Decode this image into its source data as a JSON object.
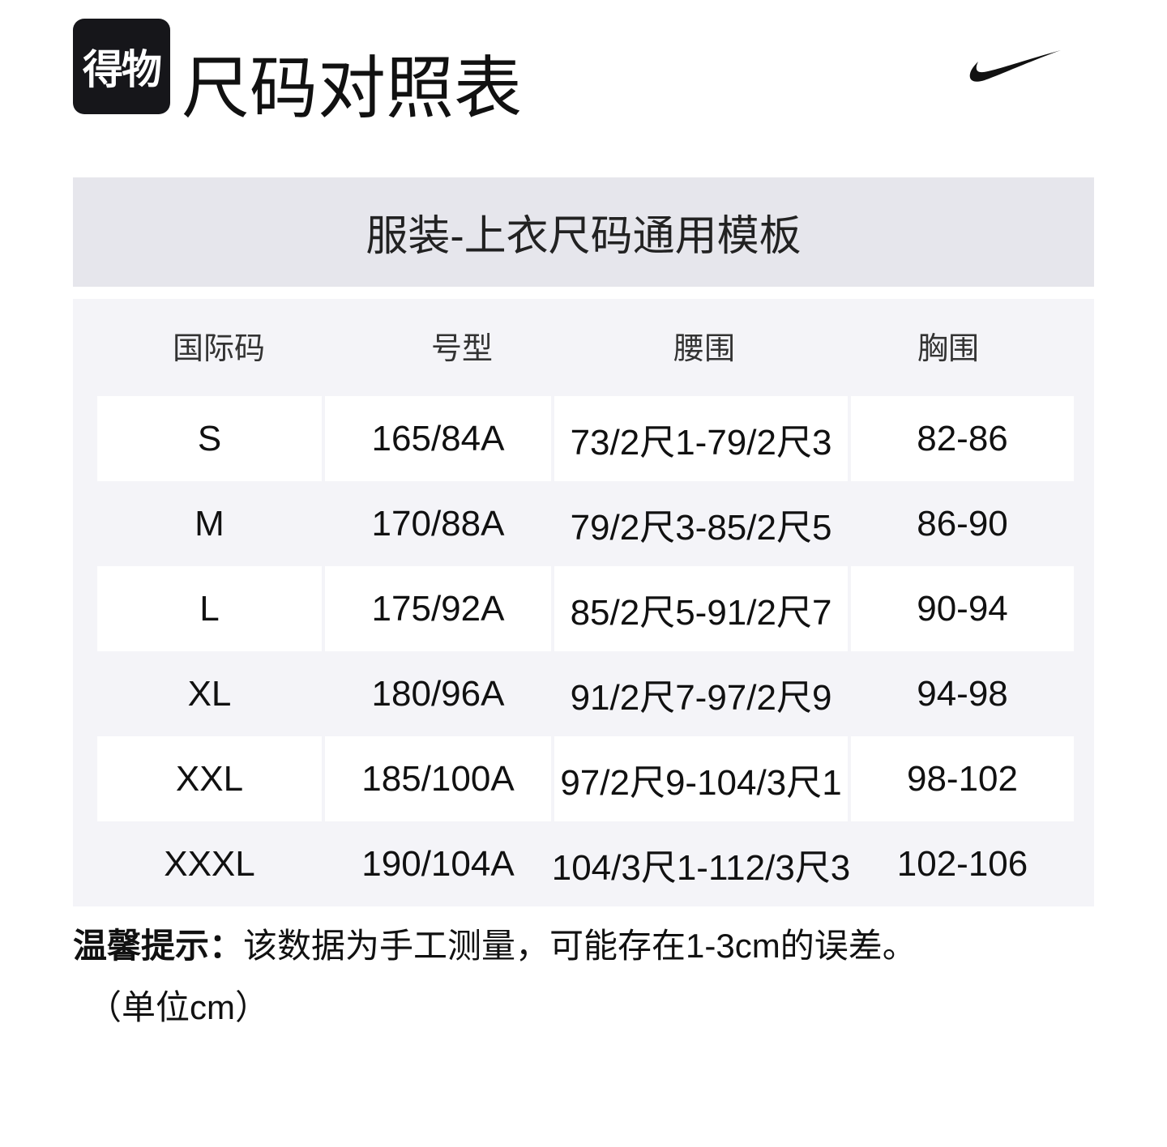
{
  "logo": {
    "text": "得物"
  },
  "title": "尺码对照表",
  "brand_icon": "nike-swoosh",
  "banner": "服装-上衣尺码通用模板",
  "colors": {
    "banner_bg": "#e6e6ec",
    "table_bg": "#f4f4f8",
    "row_white": "#ffffff"
  },
  "headers": [
    "国际码",
    "号型",
    "腰围",
    "胸围"
  ],
  "rows": [
    [
      "S",
      "165/84A",
      "73/2尺1-79/2尺3",
      "82-86"
    ],
    [
      "M",
      "170/88A",
      "79/2尺3-85/2尺5",
      "86-90"
    ],
    [
      "L",
      "175/92A",
      "85/2尺5-91/2尺7",
      "90-94"
    ],
    [
      "XL",
      "180/96A",
      "91/2尺7-97/2尺9",
      "94-98"
    ],
    [
      "XXL",
      "185/100A",
      "97/2尺9-104/3尺1",
      "98-102"
    ],
    [
      "XXXL",
      "190/104A",
      "104/3尺1-112/3尺3",
      "102-106"
    ]
  ],
  "note": {
    "label": "温馨提示：",
    "text": "该数据为手工测量，可能存在1-3cm的误差。",
    "unit": "（单位cm）"
  }
}
